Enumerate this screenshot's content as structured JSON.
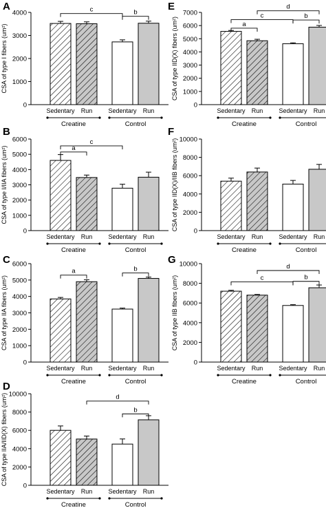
{
  "figure": {
    "colors": {
      "axis": "#000000",
      "control_run_fill": "#c8c8c8",
      "creatine_run_fill": "#c8c8c8",
      "open_fill": "#ffffff"
    }
  },
  "chart_data": [
    {
      "panel": "A",
      "type": "bar",
      "categories": [
        "Sedentary",
        "Run",
        "Sedentary",
        "Run"
      ],
      "groups": [
        "Creatine",
        "Control"
      ],
      "values": [
        3520,
        3510,
        2720,
        3530
      ],
      "errors": [
        90,
        80,
        90,
        90
      ],
      "ylabel": "CSA of type I fibers (um²)",
      "ylim": [
        0,
        4000
      ],
      "yticks": [
        0,
        1000,
        2000,
        3000,
        4000
      ],
      "significance": [
        {
          "label": "c",
          "from": 0,
          "to": 2,
          "y": 3950
        },
        {
          "label": "b",
          "from": 2,
          "to": 3,
          "y": 3830
        }
      ]
    },
    {
      "panel": "B",
      "type": "bar",
      "categories": [
        "Sedentary",
        "Run",
        "Sedentary",
        "Run"
      ],
      "groups": [
        "Creatine",
        "Control"
      ],
      "values": [
        4600,
        3480,
        2780,
        3500
      ],
      "errors": [
        380,
        160,
        260,
        330
      ],
      "ylabel": "CSA of type I/IIA fibers (um²)",
      "ylim": [
        0,
        6000
      ],
      "yticks": [
        0,
        1000,
        2000,
        3000,
        4000,
        5000,
        6000
      ],
      "significance": [
        {
          "label": "a",
          "from": 0,
          "to": 1,
          "y": 5150
        },
        {
          "label": "c",
          "from": 0,
          "to": 2,
          "y": 5550
        }
      ]
    },
    {
      "panel": "C",
      "type": "bar",
      "categories": [
        "Sedentary",
        "Run",
        "Sedentary",
        "Run"
      ],
      "groups": [
        "Creatine",
        "Control"
      ],
      "values": [
        3850,
        4900,
        3230,
        5100
      ],
      "errors": [
        90,
        120,
        60,
        80
      ],
      "ylabel": "CSA of type IIA fibers (um²)",
      "ylim": [
        0,
        6000
      ],
      "yticks": [
        0,
        1000,
        2000,
        3000,
        4000,
        5000,
        6000
      ],
      "significance": [
        {
          "label": "a",
          "from": 0,
          "to": 1,
          "y": 5300
        },
        {
          "label": "b",
          "from": 2,
          "to": 3,
          "y": 5430
        }
      ]
    },
    {
      "panel": "D",
      "type": "bar",
      "categories": [
        "Sedentary",
        "Run",
        "Sedentary",
        "Run"
      ],
      "groups": [
        "Creatine",
        "Control"
      ],
      "values": [
        6000,
        5050,
        4500,
        7150
      ],
      "errors": [
        480,
        330,
        560,
        450
      ],
      "ylabel": "CSA of type IIA/IID(X) fibers (um²)",
      "ylim": [
        0,
        10000
      ],
      "yticks": [
        0,
        2000,
        4000,
        6000,
        8000,
        10000
      ],
      "significance": [
        {
          "label": "d",
          "from": 1,
          "to": 3,
          "y": 9200
        },
        {
          "label": "b",
          "from": 2,
          "to": 3,
          "y": 7800
        }
      ]
    },
    {
      "panel": "E",
      "type": "bar",
      "categories": [
        "Sedentary",
        "Run",
        "Sedentary",
        "Run"
      ],
      "groups": [
        "Creatine",
        "Control"
      ],
      "values": [
        5560,
        4850,
        4620,
        5880
      ],
      "errors": [
        70,
        110,
        70,
        130
      ],
      "ylabel": "CSA of type IID(X) fibers (um²)",
      "ylim": [
        0,
        7000
      ],
      "yticks": [
        0,
        1000,
        2000,
        3000,
        4000,
        5000,
        6000,
        7000
      ],
      "significance": [
        {
          "label": "a",
          "from": 0,
          "to": 1,
          "y": 5800
        },
        {
          "label": "b",
          "from": 2,
          "to": 3,
          "y": 6420
        },
        {
          "label": "c",
          "from": 0,
          "to": 2,
          "y": 6450
        },
        {
          "label": "d",
          "from": 1,
          "to": 3,
          "y": 7120
        }
      ]
    },
    {
      "panel": "F",
      "type": "bar",
      "categories": [
        "Sedentary",
        "Run",
        "Sedentary",
        "Run"
      ],
      "groups": [
        "Creatine",
        "Control"
      ],
      "values": [
        5400,
        6400,
        5080,
        6700
      ],
      "errors": [
        330,
        430,
        400,
        530
      ],
      "ylabel": "CSA of type IID(X)/IIB fibers (um²)",
      "ylim": [
        0,
        10000
      ],
      "yticks": [
        0,
        2000,
        4000,
        6000,
        8000,
        10000
      ],
      "significance": []
    },
    {
      "panel": "G",
      "type": "bar",
      "categories": [
        "Sedentary",
        "Run",
        "Sedentary",
        "Run"
      ],
      "groups": [
        "Creatine",
        "Control"
      ],
      "values": [
        7200,
        6800,
        5750,
        7550
      ],
      "errors": [
        90,
        70,
        80,
        280
      ],
      "ylabel": "CSA of type IIB fibers (um²)",
      "ylim": [
        0,
        10000
      ],
      "yticks": [
        0,
        2000,
        4000,
        6000,
        8000,
        10000
      ],
      "significance": [
        {
          "label": "b",
          "from": 2,
          "to": 3,
          "y": 8200
        },
        {
          "label": "c",
          "from": 0,
          "to": 2,
          "y": 8150
        },
        {
          "label": "d",
          "from": 1,
          "to": 3,
          "y": 9300
        }
      ]
    }
  ]
}
